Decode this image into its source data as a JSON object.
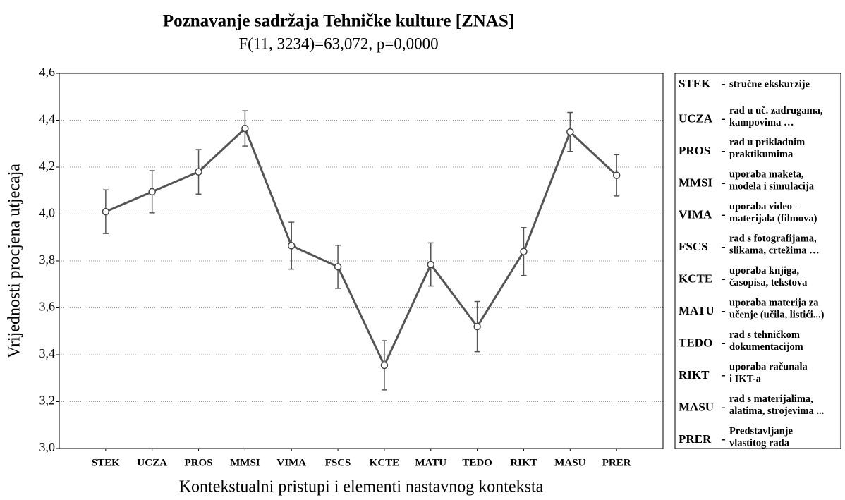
{
  "chart_data": {
    "type": "line",
    "title": "Poznavanje sadržaja Tehničke kulture [ZNAS]",
    "subtitle": "F(11, 3234)=63,072, p=0,0000",
    "x_label": "Kontekstualni pristupi i elementi nastavnog konteksta",
    "y_label": "Vrijednosti procjena utjecaja",
    "categories": [
      "STEK",
      "UCZA",
      "PROS",
      "MMSI",
      "VIMA",
      "FSCS",
      "KCTE",
      "MATU",
      "TEDO",
      "RIKT",
      "MASU",
      "PRER"
    ],
    "values": [
      4.01,
      4.095,
      4.18,
      4.365,
      3.865,
      3.775,
      3.355,
      3.785,
      3.52,
      3.84,
      4.35,
      4.165
    ],
    "errors": [
      0.093,
      0.09,
      0.095,
      0.075,
      0.1,
      0.092,
      0.105,
      0.092,
      0.107,
      0.102,
      0.083,
      0.088
    ],
    "color": "#555555",
    "ylim": [
      3.0,
      4.6
    ],
    "yticks": [
      {
        "value": 3.0,
        "label": "3,0"
      },
      {
        "value": 3.2,
        "label": "3,2"
      },
      {
        "value": 3.4,
        "label": "3,4"
      },
      {
        "value": 3.6,
        "label": "3,6"
      },
      {
        "value": 3.8,
        "label": "3,8"
      },
      {
        "value": 4.0,
        "label": "4,0"
      },
      {
        "value": 4.2,
        "label": "4,2"
      },
      {
        "value": 4.4,
        "label": "4,4"
      },
      {
        "value": 4.6,
        "label": "4,6"
      }
    ],
    "grid": true,
    "legend_separator": "-",
    "legend_entries": [
      {
        "code": "STEK",
        "lines": [
          "stručne ekskurzije"
        ]
      },
      {
        "code": "UCZA",
        "lines": [
          "rad u uč. zadrugama,",
          "kampovima …"
        ]
      },
      {
        "code": "PROS",
        "lines": [
          "rad u prikladnim",
          "praktikumima"
        ]
      },
      {
        "code": "MMSI",
        "lines": [
          "uporaba maketa,",
          "modela i simulacija"
        ]
      },
      {
        "code": "VIMA",
        "lines": [
          "uporaba video –",
          "materijala (filmova)"
        ]
      },
      {
        "code": "FSCS",
        "lines": [
          "rad s fotografijama,",
          "slikama, crtežima …"
        ]
      },
      {
        "code": "KCTE",
        "lines": [
          "uporaba knjiga,",
          "časopisa, tekstova"
        ]
      },
      {
        "code": "MATU",
        "lines": [
          "uporaba materija za",
          "učenje (učila, listići...)"
        ]
      },
      {
        "code": "TEDO",
        "lines": [
          "rad s tehničkom",
          "dokumentacijom"
        ]
      },
      {
        "code": "RIKT",
        "lines": [
          "uporaba računala",
          "i IKT-a"
        ]
      },
      {
        "code": "MASU",
        "lines": [
          "rad s materijalima,",
          "alatima, strojevima ..."
        ]
      },
      {
        "code": "PRER",
        "lines": [
          "Predstavljanje",
          "vlastitog rada"
        ]
      }
    ]
  }
}
